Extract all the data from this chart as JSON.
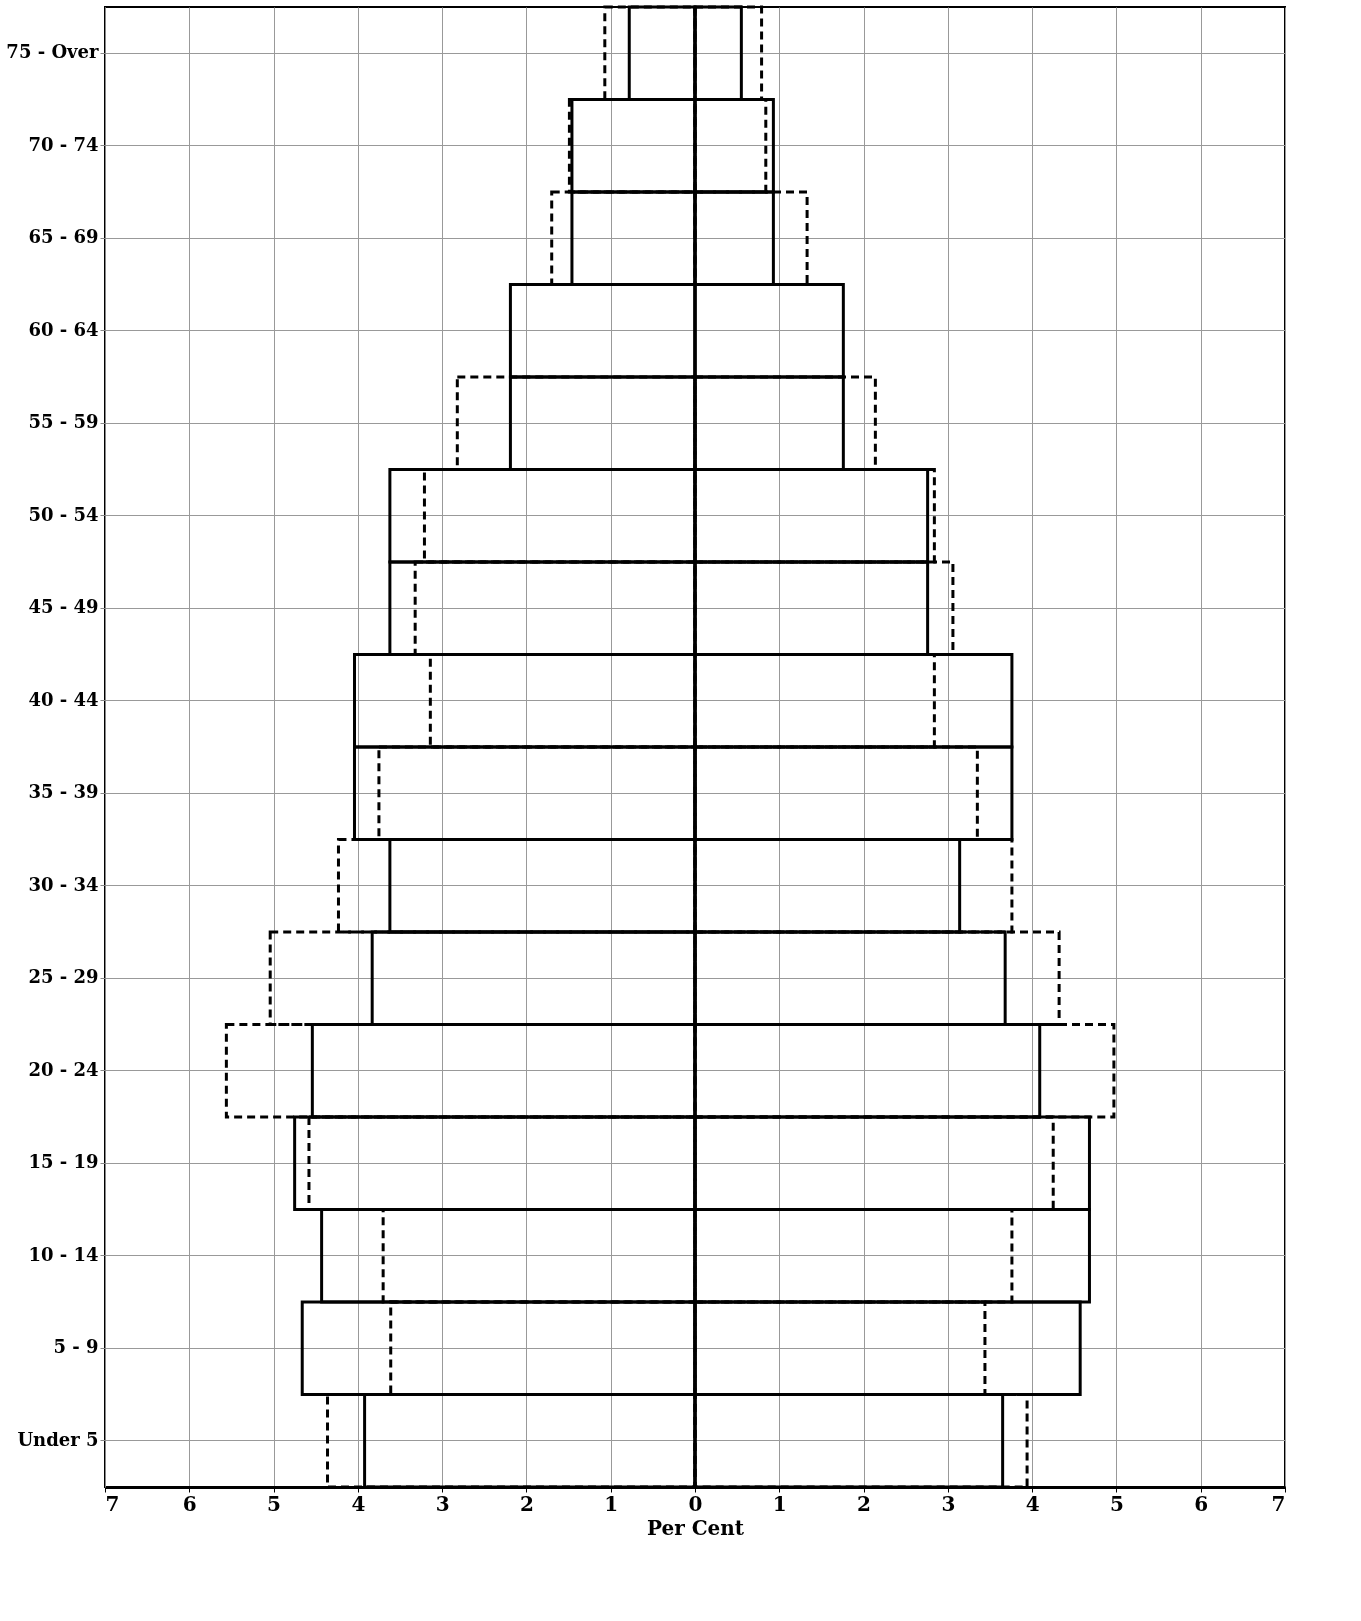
{
  "chart_data": {
    "type": "bar",
    "orientation": "horizontal",
    "xlabel": "Per Cent",
    "grid": true,
    "legend": false,
    "categories": [
      "75 - Over",
      "70 - 74",
      "65 - 69",
      "60 - 64",
      "55 - 59",
      "50 - 54",
      "45 - 49",
      "40 - 44",
      "35 - 39",
      "30 - 34",
      "25 - 29",
      "20 - 24",
      "15 - 19",
      "10 - 14",
      "5 - 9",
      "Under 5"
    ],
    "xlim": [
      -7,
      7
    ],
    "xticks": [
      {
        "value": -7,
        "label": "7"
      },
      {
        "value": -6,
        "label": "6"
      },
      {
        "value": -5,
        "label": "5"
      },
      {
        "value": -4,
        "label": "4"
      },
      {
        "value": -3,
        "label": "3"
      },
      {
        "value": -2,
        "label": "2"
      },
      {
        "value": -1,
        "label": "1"
      },
      0,
      1,
      2,
      3,
      4,
      5,
      6,
      7
    ],
    "series": [
      {
        "color": "#000000",
        "line_style": "solid",
        "values": [
          -0.78,
          -1.46,
          -1.46,
          -2.19,
          -2.19,
          -3.62,
          -3.62,
          -4.04,
          -4.04,
          -3.62,
          -3.83,
          -4.54,
          -4.75,
          -4.43,
          -4.66,
          -3.92
        ]
      },
      {
        "color": "#000000",
        "line_style": "dashed",
        "values": [
          -1.07,
          -1.49,
          -1.7,
          null,
          -2.82,
          -3.21,
          -3.32,
          -3.14,
          -3.75,
          -4.23,
          -5.04,
          -5.56,
          -4.58,
          -3.7,
          -3.61,
          -4.36
        ]
      },
      {
        "color": "#000000",
        "line_style": "solid",
        "values": [
          0.55,
          0.93,
          0.93,
          1.76,
          1.76,
          2.76,
          2.76,
          3.76,
          3.76,
          3.14,
          3.68,
          4.09,
          4.68,
          4.68,
          4.57,
          3.65
        ]
      },
      {
        "color": "#000000",
        "line_style": "dashed",
        "values": [
          0.79,
          0.84,
          1.33,
          null,
          2.14,
          2.84,
          3.06,
          2.84,
          3.35,
          3.76,
          4.32,
          4.97,
          4.25,
          3.76,
          3.44,
          3.94
        ]
      }
    ]
  }
}
